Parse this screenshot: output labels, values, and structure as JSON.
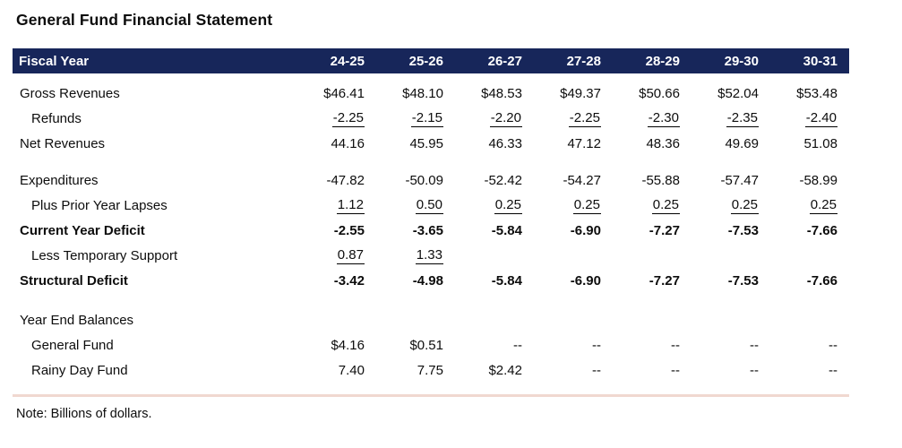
{
  "title": "General Fund Financial Statement",
  "note": "Note: Billions of dollars.",
  "colors": {
    "header_bg": "#17265a",
    "header_text": "#ffffff",
    "divider": "#f0d8d0",
    "body_text": "#0d0d0d"
  },
  "table": {
    "header": {
      "label": "Fiscal Year",
      "years": [
        "24-25",
        "25-26",
        "26-27",
        "27-28",
        "28-29",
        "29-30",
        "30-31"
      ]
    },
    "sections": [
      {
        "rows": [
          {
            "label": "Gross Revenues",
            "indent": false,
            "bold": false,
            "underline": false,
            "values": [
              "$46.41",
              "$48.10",
              "$48.53",
              "$49.37",
              "$50.66",
              "$52.04",
              "$53.48"
            ]
          },
          {
            "label": "Refunds",
            "indent": true,
            "bold": false,
            "underline": true,
            "values": [
              "-2.25",
              "-2.15",
              "-2.20",
              "-2.25",
              "-2.30",
              "-2.35",
              "-2.40"
            ]
          },
          {
            "label": "Net Revenues",
            "indent": false,
            "bold": false,
            "underline": false,
            "values": [
              "44.16",
              "45.95",
              "46.33",
              "47.12",
              "48.36",
              "49.69",
              "51.08"
            ]
          }
        ]
      },
      {
        "rows": [
          {
            "label": "Expenditures",
            "indent": false,
            "bold": false,
            "underline": false,
            "values": [
              "-47.82",
              "-50.09",
              "-52.42",
              "-54.27",
              "-55.88",
              "-57.47",
              "-58.99"
            ]
          },
          {
            "label": "Plus Prior Year Lapses",
            "indent": true,
            "bold": false,
            "underline": true,
            "values": [
              "1.12",
              "0.50",
              "0.25",
              "0.25",
              "0.25",
              "0.25",
              "0.25"
            ]
          },
          {
            "label": "Current Year Deficit",
            "indent": false,
            "bold": true,
            "underline": false,
            "values": [
              "-2.55",
              "-3.65",
              "-5.84",
              "-6.90",
              "-7.27",
              "-7.53",
              "-7.66"
            ]
          },
          {
            "label": "Less Temporary Support",
            "indent": true,
            "bold": false,
            "underline": true,
            "values": [
              "0.87",
              "1.33",
              "",
              "",
              "",
              "",
              ""
            ]
          },
          {
            "label": "Structural Deficit",
            "indent": false,
            "bold": true,
            "underline": false,
            "values": [
              "-3.42",
              "-4.98",
              "-5.84",
              "-6.90",
              "-7.27",
              "-7.53",
              "-7.66"
            ]
          }
        ]
      },
      {
        "rows": [
          {
            "label": "Year End Balances",
            "indent": false,
            "bold": false,
            "underline": false,
            "values": [
              "",
              "",
              "",
              "",
              "",
              "",
              ""
            ]
          },
          {
            "label": "General Fund",
            "indent": true,
            "bold": false,
            "underline": false,
            "values": [
              "$4.16",
              "$0.51",
              "--",
              "--",
              "--",
              "--",
              "--"
            ]
          },
          {
            "label": "Rainy Day Fund",
            "indent": true,
            "bold": false,
            "underline": false,
            "values": [
              "7.40",
              "7.75",
              "$2.42",
              "--",
              "--",
              "--",
              "--"
            ]
          }
        ]
      }
    ]
  }
}
